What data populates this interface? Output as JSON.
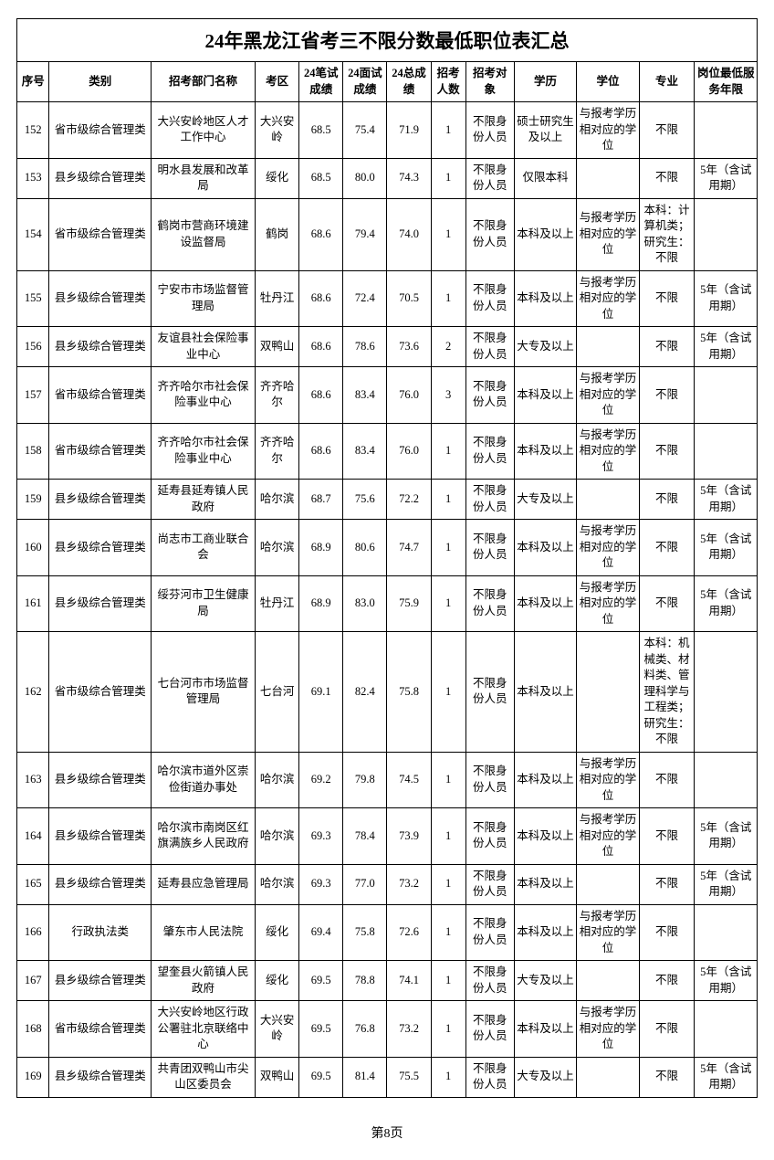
{
  "title": "24年黑龙江省考三不限分数最低职位表汇总",
  "page_label": "第8页",
  "columns": [
    "序号",
    "类别",
    "招考部门名称",
    "考区",
    "24笔试成绩",
    "24面试成绩",
    "24总成绩",
    "招考人数",
    "招考对象",
    "学历",
    "学位",
    "专业",
    "岗位最低服务年限"
  ],
  "rows": [
    {
      "seq": "152",
      "cat": "省市级综合管理类",
      "dept": "大兴安岭地区人才工作中心",
      "area": "大兴安岭",
      "s1": "68.5",
      "s2": "75.4",
      "s3": "71.9",
      "cnt": "1",
      "tgt": "不限身份人员",
      "edu": "硕士研究生及以上",
      "deg": "与报考学历相对应的学位",
      "maj": "不限",
      "yrs": ""
    },
    {
      "seq": "153",
      "cat": "县乡级综合管理类",
      "dept": "明水县发展和改革局",
      "area": "绥化",
      "s1": "68.5",
      "s2": "80.0",
      "s3": "74.3",
      "cnt": "1",
      "tgt": "不限身份人员",
      "edu": "仅限本科",
      "deg": "",
      "maj": "不限",
      "yrs": "5年（含试用期）"
    },
    {
      "seq": "154",
      "cat": "省市级综合管理类",
      "dept": "鹤岗市营商环境建设监督局",
      "area": "鹤岗",
      "s1": "68.6",
      "s2": "79.4",
      "s3": "74.0",
      "cnt": "1",
      "tgt": "不限身份人员",
      "edu": "本科及以上",
      "deg": "与报考学历相对应的学位",
      "maj": "本科：计算机类；研究生：不限",
      "yrs": ""
    },
    {
      "seq": "155",
      "cat": "县乡级综合管理类",
      "dept": "宁安市市场监督管理局",
      "area": "牡丹江",
      "s1": "68.6",
      "s2": "72.4",
      "s3": "70.5",
      "cnt": "1",
      "tgt": "不限身份人员",
      "edu": "本科及以上",
      "deg": "与报考学历相对应的学位",
      "maj": "不限",
      "yrs": "5年（含试用期）"
    },
    {
      "seq": "156",
      "cat": "县乡级综合管理类",
      "dept": "友谊县社会保险事业中心",
      "area": "双鸭山",
      "s1": "68.6",
      "s2": "78.6",
      "s3": "73.6",
      "cnt": "2",
      "tgt": "不限身份人员",
      "edu": "大专及以上",
      "deg": "",
      "maj": "不限",
      "yrs": "5年（含试用期）"
    },
    {
      "seq": "157",
      "cat": "省市级综合管理类",
      "dept": "齐齐哈尔市社会保险事业中心",
      "area": "齐齐哈尔",
      "s1": "68.6",
      "s2": "83.4",
      "s3": "76.0",
      "cnt": "3",
      "tgt": "不限身份人员",
      "edu": "本科及以上",
      "deg": "与报考学历相对应的学位",
      "maj": "不限",
      "yrs": ""
    },
    {
      "seq": "158",
      "cat": "省市级综合管理类",
      "dept": "齐齐哈尔市社会保险事业中心",
      "area": "齐齐哈尔",
      "s1": "68.6",
      "s2": "83.4",
      "s3": "76.0",
      "cnt": "1",
      "tgt": "不限身份人员",
      "edu": "本科及以上",
      "deg": "与报考学历相对应的学位",
      "maj": "不限",
      "yrs": ""
    },
    {
      "seq": "159",
      "cat": "县乡级综合管理类",
      "dept": "延寿县延寿镇人民政府",
      "area": "哈尔滨",
      "s1": "68.7",
      "s2": "75.6",
      "s3": "72.2",
      "cnt": "1",
      "tgt": "不限身份人员",
      "edu": "大专及以上",
      "deg": "",
      "maj": "不限",
      "yrs": "5年（含试用期）"
    },
    {
      "seq": "160",
      "cat": "县乡级综合管理类",
      "dept": "尚志市工商业联合会",
      "area": "哈尔滨",
      "s1": "68.9",
      "s2": "80.6",
      "s3": "74.7",
      "cnt": "1",
      "tgt": "不限身份人员",
      "edu": "本科及以上",
      "deg": "与报考学历相对应的学位",
      "maj": "不限",
      "yrs": "5年（含试用期）"
    },
    {
      "seq": "161",
      "cat": "县乡级综合管理类",
      "dept": "绥芬河市卫生健康局",
      "area": "牡丹江",
      "s1": "68.9",
      "s2": "83.0",
      "s3": "75.9",
      "cnt": "1",
      "tgt": "不限身份人员",
      "edu": "本科及以上",
      "deg": "与报考学历相对应的学位",
      "maj": "不限",
      "yrs": "5年（含试用期）"
    },
    {
      "seq": "162",
      "cat": "省市级综合管理类",
      "dept": "七台河市市场监督管理局",
      "area": "七台河",
      "s1": "69.1",
      "s2": "82.4",
      "s3": "75.8",
      "cnt": "1",
      "tgt": "不限身份人员",
      "edu": "本科及以上",
      "deg": "",
      "maj": "本科：机械类、材料类、管理科学与工程类；研究生：不限",
      "yrs": "",
      "tall": true
    },
    {
      "seq": "163",
      "cat": "县乡级综合管理类",
      "dept": "哈尔滨市道外区崇俭街道办事处",
      "area": "哈尔滨",
      "s1": "69.2",
      "s2": "79.8",
      "s3": "74.5",
      "cnt": "1",
      "tgt": "不限身份人员",
      "edu": "本科及以上",
      "deg": "与报考学历相对应的学位",
      "maj": "不限",
      "yrs": ""
    },
    {
      "seq": "164",
      "cat": "县乡级综合管理类",
      "dept": "哈尔滨市南岗区红旗满族乡人民政府",
      "area": "哈尔滨",
      "s1": "69.3",
      "s2": "78.4",
      "s3": "73.9",
      "cnt": "1",
      "tgt": "不限身份人员",
      "edu": "本科及以上",
      "deg": "与报考学历相对应的学位",
      "maj": "不限",
      "yrs": "5年（含试用期）"
    },
    {
      "seq": "165",
      "cat": "县乡级综合管理类",
      "dept": "延寿县应急管理局",
      "area": "哈尔滨",
      "s1": "69.3",
      "s2": "77.0",
      "s3": "73.2",
      "cnt": "1",
      "tgt": "不限身份人员",
      "edu": "本科及以上",
      "deg": "",
      "maj": "不限",
      "yrs": "5年（含试用期）"
    },
    {
      "seq": "166",
      "cat": "行政执法类",
      "dept": "肇东市人民法院",
      "area": "绥化",
      "s1": "69.4",
      "s2": "75.8",
      "s3": "72.6",
      "cnt": "1",
      "tgt": "不限身份人员",
      "edu": "本科及以上",
      "deg": "与报考学历相对应的学位",
      "maj": "不限",
      "yrs": ""
    },
    {
      "seq": "167",
      "cat": "县乡级综合管理类",
      "dept": "望奎县火箭镇人民政府",
      "area": "绥化",
      "s1": "69.5",
      "s2": "78.8",
      "s3": "74.1",
      "cnt": "1",
      "tgt": "不限身份人员",
      "edu": "大专及以上",
      "deg": "",
      "maj": "不限",
      "yrs": "5年（含试用期）"
    },
    {
      "seq": "168",
      "cat": "省市级综合管理类",
      "dept": "大兴安岭地区行政公署驻北京联络中心",
      "area": "大兴安岭",
      "s1": "69.5",
      "s2": "76.8",
      "s3": "73.2",
      "cnt": "1",
      "tgt": "不限身份人员",
      "edu": "本科及以上",
      "deg": "与报考学历相对应的学位",
      "maj": "不限",
      "yrs": ""
    },
    {
      "seq": "169",
      "cat": "县乡级综合管理类",
      "dept": "共青团双鸭山市尖山区委员会",
      "area": "双鸭山",
      "s1": "69.5",
      "s2": "81.4",
      "s3": "75.5",
      "cnt": "1",
      "tgt": "不限身份人员",
      "edu": "大专及以上",
      "deg": "",
      "maj": "不限",
      "yrs": "5年（含试用期）"
    }
  ],
  "col_classes": [
    "col-seq",
    "col-cat",
    "col-dept",
    "col-area",
    "col-score",
    "col-score",
    "col-score",
    "col-count",
    "col-target",
    "col-edu",
    "col-degree",
    "col-major",
    "col-years"
  ]
}
